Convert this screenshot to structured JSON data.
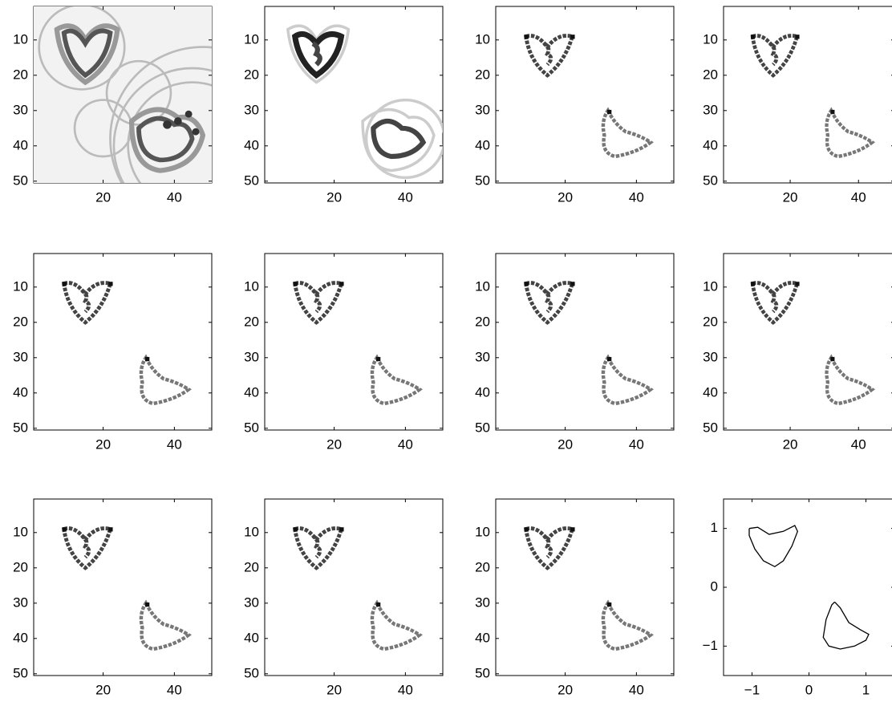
{
  "chart_data": [
    {
      "type": "image",
      "xlim": [
        0.5,
        50.5
      ],
      "ylim": [
        0.5,
        50.5
      ],
      "y_reversed": true,
      "xticks": [
        20,
        40
      ],
      "yticks": [
        10,
        20,
        30,
        40,
        50
      ]
    },
    {
      "type": "image",
      "xlim": [
        0.5,
        50.5
      ],
      "ylim": [
        0.5,
        50.5
      ],
      "y_reversed": true,
      "xticks": [
        20,
        40
      ],
      "yticks": [
        10,
        20,
        30,
        40,
        50
      ]
    },
    {
      "type": "image",
      "xlim": [
        0.5,
        50.5
      ],
      "ylim": [
        0.5,
        50.5
      ],
      "y_reversed": true,
      "xticks": [
        20,
        40
      ],
      "yticks": [
        10,
        20,
        30,
        40,
        50
      ]
    },
    {
      "type": "image",
      "xlim": [
        0.5,
        50.5
      ],
      "ylim": [
        0.5,
        50.5
      ],
      "y_reversed": true,
      "xticks": [
        20,
        40
      ],
      "yticks": [
        10,
        20,
        30,
        40,
        50
      ]
    },
    {
      "type": "image",
      "xlim": [
        0.5,
        50.5
      ],
      "ylim": [
        0.5,
        50.5
      ],
      "y_reversed": true,
      "xticks": [
        20,
        40
      ],
      "yticks": [
        10,
        20,
        30,
        40,
        50
      ]
    },
    {
      "type": "image",
      "xlim": [
        0.5,
        50.5
      ],
      "ylim": [
        0.5,
        50.5
      ],
      "y_reversed": true,
      "xticks": [
        20,
        40
      ],
      "yticks": [
        10,
        20,
        30,
        40,
        50
      ]
    },
    {
      "type": "image",
      "xlim": [
        0.5,
        50.5
      ],
      "ylim": [
        0.5,
        50.5
      ],
      "y_reversed": true,
      "xticks": [
        20,
        40
      ],
      "yticks": [
        10,
        20,
        30,
        40,
        50
      ]
    },
    {
      "type": "image",
      "xlim": [
        0.5,
        50.5
      ],
      "ylim": [
        0.5,
        50.5
      ],
      "y_reversed": true,
      "xticks": [
        20,
        40
      ],
      "yticks": [
        10,
        20,
        30,
        40,
        50
      ]
    },
    {
      "type": "image",
      "xlim": [
        0.5,
        50.5
      ],
      "ylim": [
        0.5,
        50.5
      ],
      "y_reversed": true,
      "xticks": [
        20,
        40
      ],
      "yticks": [
        10,
        20,
        30,
        40,
        50
      ]
    },
    {
      "type": "image",
      "xlim": [
        0.5,
        50.5
      ],
      "ylim": [
        0.5,
        50.5
      ],
      "y_reversed": true,
      "xticks": [
        20,
        40
      ],
      "yticks": [
        10,
        20,
        30,
        40,
        50
      ]
    },
    {
      "type": "image",
      "xlim": [
        0.5,
        50.5
      ],
      "ylim": [
        0.5,
        50.5
      ],
      "y_reversed": true,
      "xticks": [
        20,
        40
      ],
      "yticks": [
        10,
        20,
        30,
        40,
        50
      ]
    },
    {
      "type": "line",
      "xlim": [
        -1.5,
        1.5
      ],
      "ylim": [
        -1.5,
        1.5
      ],
      "xticks": [
        {
          "value": -1,
          "label": "−1"
        },
        0,
        1
      ],
      "yticks": [
        {
          "value": -1,
          "label": "−1"
        },
        0,
        1
      ],
      "series": [
        {
          "color": "#000000",
          "x": [
            -1.05,
            -0.9,
            -0.7,
            -0.45,
            -0.25,
            -0.2,
            -0.3,
            -0.45,
            -0.6,
            -0.8,
            -0.95,
            -1.05,
            -1.05
          ],
          "values": [
            1.0,
            1.02,
            0.9,
            0.95,
            1.05,
            0.95,
            0.7,
            0.45,
            0.35,
            0.45,
            0.65,
            0.88,
            1.0
          ]
        },
        {
          "color": "#000000",
          "x": [
            0.45,
            0.55,
            0.7,
            0.9,
            1.05,
            1.0,
            0.8,
            0.55,
            0.35,
            0.25,
            0.3,
            0.4,
            0.45
          ],
          "values": [
            -0.25,
            -0.35,
            -0.6,
            -0.72,
            -0.8,
            -0.9,
            -1.0,
            -1.05,
            -1.0,
            -0.85,
            -0.55,
            -0.3,
            -0.25
          ]
        }
      ]
    }
  ]
}
